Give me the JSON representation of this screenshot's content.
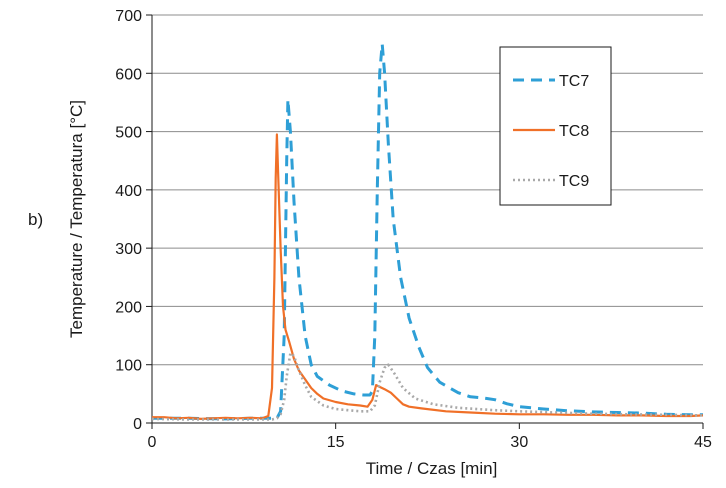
{
  "panel_label": "b)",
  "chart_data": {
    "type": "line",
    "title": "",
    "xlabel": "Time  / Czas [min]",
    "ylabel": "Temperature / Temperatura [°C]",
    "xlim": [
      0,
      45
    ],
    "ylim": [
      0,
      700
    ],
    "xticks": [
      0,
      15,
      30,
      45
    ],
    "yticks": [
      0,
      100,
      200,
      300,
      400,
      500,
      600,
      700
    ],
    "grid": {
      "horizontal": true,
      "vertical": false
    },
    "legend_position": "top-right",
    "series": [
      {
        "name": "TC7",
        "color": "#2e9fd6",
        "line_style": "dashed",
        "points": [
          [
            0,
            8
          ],
          [
            3,
            8
          ],
          [
            6,
            7
          ],
          [
            8,
            8
          ],
          [
            9.5,
            8
          ],
          [
            10.2,
            8
          ],
          [
            10.5,
            20
          ],
          [
            10.8,
            150
          ],
          [
            11.0,
            450
          ],
          [
            11.1,
            555
          ],
          [
            11.3,
            500
          ],
          [
            11.6,
            380
          ],
          [
            12.0,
            250
          ],
          [
            12.5,
            150
          ],
          [
            13.0,
            100
          ],
          [
            13.5,
            80
          ],
          [
            14.5,
            65
          ],
          [
            15.5,
            55
          ],
          [
            16.5,
            50
          ],
          [
            17.3,
            48
          ],
          [
            17.8,
            48
          ],
          [
            18.0,
            55
          ],
          [
            18.2,
            150
          ],
          [
            18.4,
            400
          ],
          [
            18.6,
            600
          ],
          [
            18.8,
            650
          ],
          [
            19.0,
            600
          ],
          [
            19.3,
            480
          ],
          [
            19.7,
            350
          ],
          [
            20.3,
            250
          ],
          [
            21.0,
            180
          ],
          [
            21.8,
            130
          ],
          [
            22.5,
            95
          ],
          [
            23.5,
            70
          ],
          [
            25,
            52
          ],
          [
            26,
            45
          ],
          [
            27,
            43
          ],
          [
            28,
            40
          ],
          [
            29,
            33
          ],
          [
            30,
            28
          ],
          [
            32,
            24
          ],
          [
            34,
            21
          ],
          [
            36,
            19
          ],
          [
            38,
            18
          ],
          [
            40,
            17
          ],
          [
            42,
            15
          ],
          [
            44,
            14
          ],
          [
            45,
            14
          ]
        ]
      },
      {
        "name": "TC8",
        "color": "#f07028",
        "line_style": "solid",
        "points": [
          [
            0,
            10
          ],
          [
            1,
            10
          ],
          [
            2,
            8
          ],
          [
            3,
            9
          ],
          [
            4,
            7
          ],
          [
            5,
            8
          ],
          [
            6,
            9
          ],
          [
            7,
            8
          ],
          [
            8,
            9
          ],
          [
            9,
            8
          ],
          [
            9.5,
            12
          ],
          [
            9.8,
            60
          ],
          [
            10.0,
            250
          ],
          [
            10.1,
            420
          ],
          [
            10.2,
            495
          ],
          [
            10.3,
            430
          ],
          [
            10.5,
            300
          ],
          [
            10.7,
            200
          ],
          [
            10.9,
            160
          ],
          [
            11.2,
            140
          ],
          [
            11.6,
            110
          ],
          [
            12.0,
            90
          ],
          [
            12.5,
            75
          ],
          [
            13.0,
            60
          ],
          [
            13.5,
            50
          ],
          [
            14.0,
            42
          ],
          [
            15.0,
            36
          ],
          [
            16.0,
            32
          ],
          [
            17.0,
            30
          ],
          [
            17.6,
            28
          ],
          [
            18.0,
            40
          ],
          [
            18.3,
            65
          ],
          [
            18.6,
            62
          ],
          [
            19.0,
            58
          ],
          [
            19.5,
            52
          ],
          [
            20.0,
            42
          ],
          [
            20.5,
            32
          ],
          [
            21.0,
            28
          ],
          [
            22.0,
            25
          ],
          [
            24,
            20
          ],
          [
            26,
            18
          ],
          [
            28,
            16
          ],
          [
            30,
            15
          ],
          [
            32,
            15
          ],
          [
            34,
            14
          ],
          [
            36,
            14
          ],
          [
            38,
            13
          ],
          [
            40,
            13
          ],
          [
            42,
            12
          ],
          [
            44,
            12
          ],
          [
            45,
            13
          ]
        ]
      },
      {
        "name": "TC9",
        "color": "#a9a9a9",
        "line_style": "dotted",
        "points": [
          [
            0,
            7
          ],
          [
            3,
            6
          ],
          [
            6,
            6
          ],
          [
            8,
            6
          ],
          [
            9.8,
            6
          ],
          [
            10.2,
            8
          ],
          [
            10.5,
            15
          ],
          [
            10.8,
            40
          ],
          [
            11.0,
            80
          ],
          [
            11.3,
            120
          ],
          [
            11.6,
            115
          ],
          [
            12.0,
            90
          ],
          [
            12.5,
            65
          ],
          [
            13.0,
            45
          ],
          [
            14.0,
            30
          ],
          [
            15.0,
            24
          ],
          [
            16.0,
            22
          ],
          [
            17.0,
            20
          ],
          [
            17.8,
            20
          ],
          [
            18.2,
            30
          ],
          [
            18.6,
            70
          ],
          [
            19.0,
            95
          ],
          [
            19.3,
            100
          ],
          [
            19.8,
            85
          ],
          [
            20.5,
            60
          ],
          [
            21.5,
            42
          ],
          [
            23,
            32
          ],
          [
            25,
            26
          ],
          [
            28,
            22
          ],
          [
            30,
            20
          ],
          [
            33,
            18
          ],
          [
            36,
            16
          ],
          [
            39,
            15
          ],
          [
            42,
            14
          ],
          [
            45,
            13
          ]
        ]
      }
    ]
  }
}
